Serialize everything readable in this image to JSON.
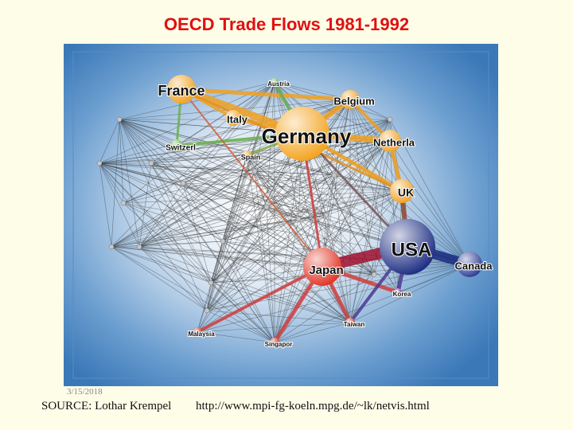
{
  "title": "OECD Trade Flows 1981-1992",
  "date": "3/15/2018",
  "source": "SOURCE: Lothar Krempel",
  "url": "http://www.mpi-fg-koeln.mpg.de/~lk/netvis.html",
  "nodes": [
    {
      "label": "France"
    },
    {
      "label": "Austria"
    },
    {
      "label": "Belgium"
    },
    {
      "label": "Italy"
    },
    {
      "label": "Germany"
    },
    {
      "label": "Netherla"
    },
    {
      "label": "Switzerl"
    },
    {
      "label": "Spain"
    },
    {
      "label": "UK"
    },
    {
      "label": "USA"
    },
    {
      "label": "Canada"
    },
    {
      "label": "Japan"
    },
    {
      "label": "Korea"
    },
    {
      "label": "Taiwan"
    },
    {
      "label": "Singapor"
    },
    {
      "label": "Malaysia"
    }
  ]
}
